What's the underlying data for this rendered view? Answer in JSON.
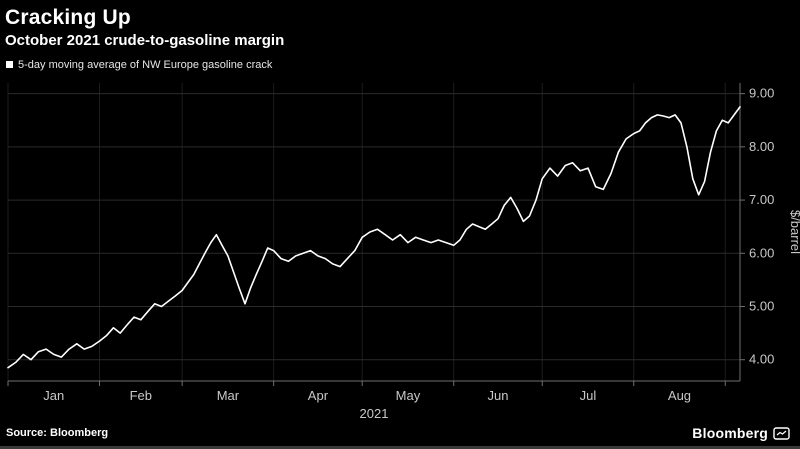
{
  "header": {
    "title": "Cracking Up",
    "subtitle": "October 2021 crude-to-gasoline margin"
  },
  "legend": {
    "label": "5-day moving average of NW Europe gasoline crack"
  },
  "footer": {
    "source": "Source: Bloomberg",
    "brand": "Bloomberg"
  },
  "colors": {
    "background": "#000000",
    "line": "#ffffff",
    "grid": "#2b2b2b",
    "grid_vertical": "#1d1d1d",
    "axis": "#6f6f6f",
    "tick_text": "#c8c8c8"
  },
  "chart_data": {
    "type": "line",
    "title": "Cracking Up",
    "subtitle": "October 2021 crude-to-gasoline margin",
    "grid": true,
    "legend_position": "top-left",
    "y_axis": {
      "label": "$/barrel",
      "position": "right",
      "ticks": [
        4,
        5,
        6,
        7,
        8,
        9
      ],
      "tick_labels": [
        "4.00",
        "5.00",
        "6.00",
        "7.00",
        "8.00",
        "9.00"
      ],
      "ylim": [
        3.6,
        9.2
      ]
    },
    "x_axis": {
      "year_label": "2021",
      "domain_days": [
        0,
        248
      ],
      "month_ticks_days": [
        0,
        31,
        59,
        90,
        120,
        151,
        181,
        212,
        243
      ],
      "month_labels": [
        "Jan",
        "Feb",
        "Mar",
        "Apr",
        "May",
        "Jun",
        "Jul",
        "Aug"
      ],
      "month_label_days": [
        15.5,
        45,
        74.5,
        105,
        135.5,
        166,
        196.5,
        227.5
      ]
    },
    "series": [
      {
        "name": "5-day moving average of NW Europe gasoline crack",
        "x_days": [
          0,
          2.6,
          5.2,
          7.8,
          10.3,
          12.9,
          15.5,
          18.1,
          20.7,
          23.3,
          25.8,
          28.4,
          31,
          33.3,
          35.7,
          38,
          40.3,
          42.7,
          45,
          47.3,
          49.7,
          52,
          54.3,
          56.7,
          59,
          60.9,
          62.9,
          64.8,
          66.7,
          68.7,
          70.6,
          72.5,
          74.5,
          76.4,
          78.3,
          80.3,
          82.2,
          84.1,
          86.1,
          88,
          90,
          92.5,
          95,
          97.5,
          100,
          102.5,
          105,
          107.5,
          110,
          112.5,
          115,
          117.5,
          120,
          122.6,
          125.2,
          127.8,
          130.3,
          132.9,
          135.5,
          138.1,
          140.7,
          143.3,
          145.8,
          148.4,
          151,
          153.1,
          155.3,
          157.4,
          159.6,
          161.7,
          163.9,
          166,
          168.1,
          170.3,
          172.4,
          174.6,
          176.7,
          178.9,
          181,
          183.6,
          186.2,
          188.8,
          191.3,
          193.9,
          196.5,
          199.1,
          201.7,
          204.3,
          206.8,
          209.4,
          212,
          214,
          216,
          218,
          220,
          222,
          224,
          226,
          228,
          230,
          232,
          234,
          236,
          238,
          240,
          242,
          244,
          246,
          248
        ],
        "values": [
          3.85,
          3.95,
          4.1,
          4.0,
          4.15,
          4.2,
          4.1,
          4.05,
          4.2,
          4.3,
          4.2,
          4.25,
          4.35,
          4.45,
          4.6,
          4.5,
          4.65,
          4.8,
          4.75,
          4.9,
          5.05,
          5.0,
          5.1,
          5.2,
          5.3,
          5.45,
          5.6,
          5.8,
          6.0,
          6.2,
          6.35,
          6.15,
          5.95,
          5.65,
          5.35,
          5.05,
          5.35,
          5.6,
          5.85,
          6.1,
          6.05,
          5.9,
          5.85,
          5.95,
          6.0,
          6.05,
          5.95,
          5.9,
          5.8,
          5.75,
          5.9,
          6.05,
          6.3,
          6.4,
          6.45,
          6.35,
          6.25,
          6.35,
          6.2,
          6.3,
          6.25,
          6.2,
          6.25,
          6.2,
          6.15,
          6.25,
          6.45,
          6.55,
          6.5,
          6.45,
          6.55,
          6.65,
          6.9,
          7.05,
          6.85,
          6.6,
          6.7,
          7.0,
          7.4,
          7.6,
          7.45,
          7.65,
          7.7,
          7.55,
          7.6,
          7.25,
          7.2,
          7.5,
          7.9,
          8.15,
          8.25,
          8.3,
          8.45,
          8.55,
          8.6,
          8.58,
          8.55,
          8.6,
          8.45,
          8.0,
          7.4,
          7.1,
          7.35,
          7.9,
          8.3,
          8.5,
          8.45,
          8.6,
          8.75
        ]
      }
    ]
  }
}
